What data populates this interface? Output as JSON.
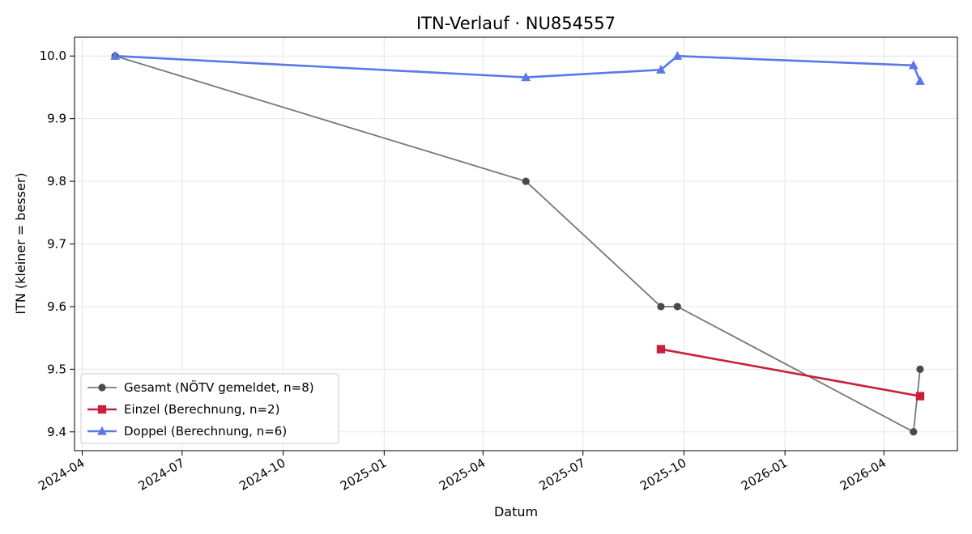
{
  "chart_data": {
    "type": "line",
    "title": "ITN-Verlauf · NU854557",
    "xlabel": "Datum",
    "ylabel": "ITN  (kleiner = besser)",
    "x_type": "date",
    "xlim": [
      "2024-03-25",
      "2026-06-07"
    ],
    "ylim": [
      9.37,
      10.03
    ],
    "x_ticks": [
      "2024-04",
      "2024-07",
      "2024-10",
      "2025-01",
      "2025-04",
      "2025-07",
      "2025-10",
      "2026-01",
      "2026-04"
    ],
    "y_ticks": [
      "9.4",
      "9.5",
      "9.6",
      "9.7",
      "9.8",
      "9.9",
      "10.0"
    ],
    "grid": true,
    "legend_position": "lower-left",
    "series": [
      {
        "name": "Gesamt (NÖTV gemeldet, n=8)",
        "color": "#777777",
        "marker": "circle",
        "x": [
          "2024-05-01",
          "2025-05-10",
          "2025-09-10",
          "2025-09-25",
          "2026-04-28",
          "2026-05-04"
        ],
        "y": [
          10.0,
          9.8,
          9.6,
          9.6,
          9.4,
          9.5
        ]
      },
      {
        "name": "Einzel (Berechnung, n=2)",
        "color": "#c8203c",
        "marker": "square",
        "x": [
          "2025-09-10",
          "2026-05-04"
        ],
        "y": [
          9.532,
          9.457
        ]
      },
      {
        "name": "Doppel (Berechnung, n=6)",
        "color": "#5a78e8",
        "marker": "triangle",
        "x": [
          "2024-05-01",
          "2025-05-10",
          "2025-09-10",
          "2025-09-25",
          "2026-04-28",
          "2026-05-04"
        ],
        "y": [
          10.0,
          9.966,
          9.978,
          10.0,
          9.985,
          9.96
        ]
      }
    ]
  }
}
